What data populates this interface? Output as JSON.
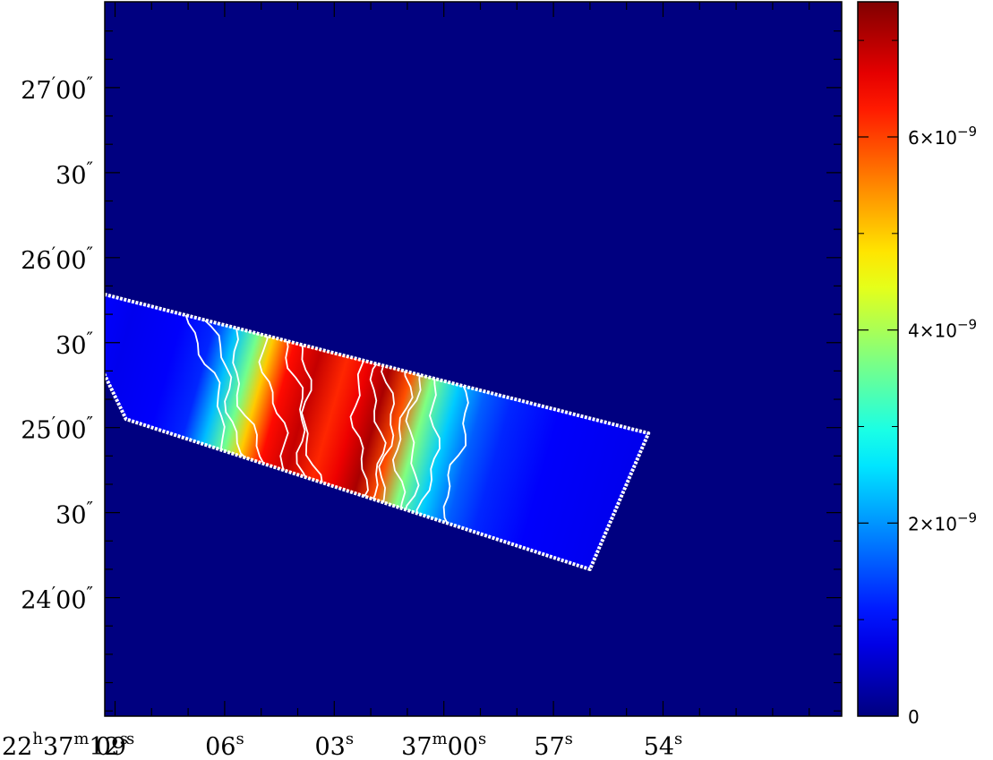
{
  "chart_data": {
    "type": "heatmap",
    "title": "",
    "xlabel": "",
    "ylabel": "",
    "grid": false,
    "x_axis": {
      "coordinate": "right ascension",
      "ticks": [
        {
          "sec": 12,
          "h": "22",
          "m": "37",
          "s": "12"
        },
        {
          "sec": 9,
          "s": "09"
        },
        {
          "sec": 6,
          "s": "06"
        },
        {
          "sec": 3,
          "s": "03"
        },
        {
          "sec": 0,
          "m": "37",
          "s": "00"
        },
        {
          "sec": -3,
          "s": "57"
        },
        {
          "sec": -6,
          "s": "54"
        }
      ]
    },
    "y_axis": {
      "coordinate": "declination",
      "ticks": [
        {
          "arcsec": 120,
          "m": "27",
          "s": "00"
        },
        {
          "arcsec": 90,
          "s": "30"
        },
        {
          "arcsec": 60,
          "m": "26",
          "s": "00"
        },
        {
          "arcsec": 30,
          "s": "30"
        },
        {
          "arcsec": 0,
          "m": "25",
          "s": "00"
        },
        {
          "arcsec": -30,
          "s": "30"
        },
        {
          "arcsec": -60,
          "m": "24",
          "s": "00"
        }
      ]
    },
    "colorbar": {
      "range": [
        0,
        7.4e-09
      ],
      "ticks": [
        {
          "value": 0,
          "label": "0"
        },
        {
          "value": 2e-09,
          "label": "2×10",
          "exp": "−9"
        },
        {
          "value": 4e-09,
          "label": "4×10",
          "exp": "−9"
        },
        {
          "value": 6e-09,
          "label": "6×10",
          "exp": "−9"
        }
      ],
      "colormap": "jet"
    },
    "strip": {
      "corners_radec": [
        {
          "ra_sec": 10.5,
          "dec_arcsec": 51
        },
        {
          "ra_sec": 8.7,
          "dec_arcsec": 3
        },
        {
          "ra_sec": -4.0,
          "dec_arcsec": -50
        },
        {
          "ra_sec": -5.6,
          "dec_arcsec": -2
        }
      ],
      "profile_along_strip": [
        {
          "t": 0.0,
          "value": 9e-10
        },
        {
          "t": 0.05,
          "value": 8e-10
        },
        {
          "t": 0.14,
          "value": 9e-10
        },
        {
          "t": 0.2,
          "value": 1.2e-09
        },
        {
          "t": 0.24,
          "value": 2.3e-09
        },
        {
          "t": 0.28,
          "value": 3.6e-09
        },
        {
          "t": 0.31,
          "value": 5e-09
        },
        {
          "t": 0.35,
          "value": 6.4e-09
        },
        {
          "t": 0.4,
          "value": 6.9e-09
        },
        {
          "t": 0.45,
          "value": 6.2e-09
        },
        {
          "t": 0.49,
          "value": 6.6e-09
        },
        {
          "t": 0.53,
          "value": 7.1e-09
        },
        {
          "t": 0.57,
          "value": 5.9e-09
        },
        {
          "t": 0.61,
          "value": 3.7e-09
        },
        {
          "t": 0.66,
          "value": 2.4e-09
        },
        {
          "t": 0.71,
          "value": 1.6e-09
        },
        {
          "t": 0.76,
          "value": 1.2e-09
        },
        {
          "t": 0.85,
          "value": 9e-10
        },
        {
          "t": 1.0,
          "value": 8e-10
        }
      ],
      "contour_levels": [
        1.2e-09,
        1.9e-09,
        2.8e-09,
        3.8e-09,
        5e-09,
        6.2e-09,
        6.8e-09
      ]
    },
    "background_value": 0
  }
}
